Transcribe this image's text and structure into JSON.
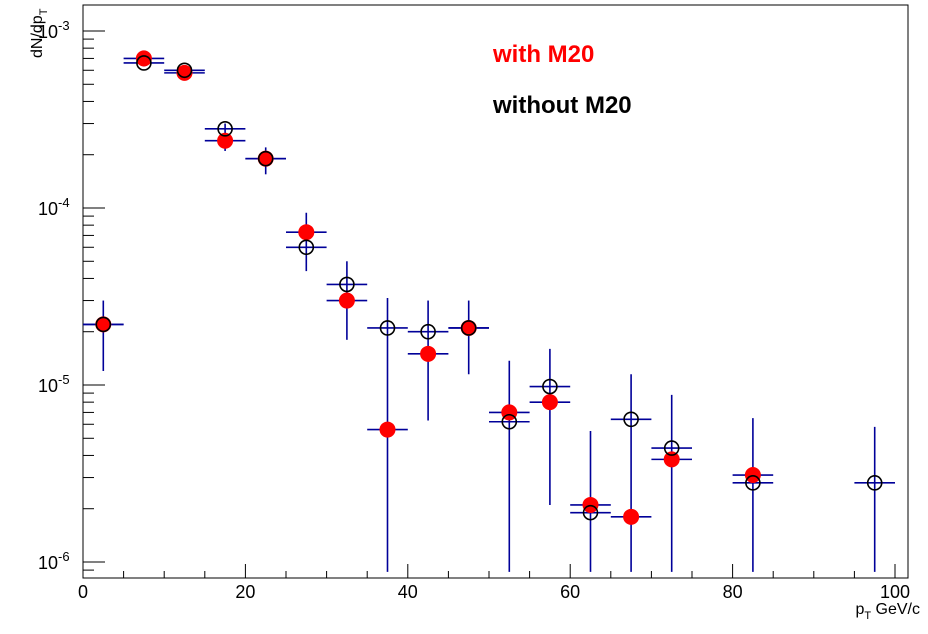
{
  "chart_data": {
    "type": "scatter",
    "title": "",
    "xlabel": "p_T GeV/c",
    "ylabel": "dN/dp_T",
    "xlim": [
      0,
      105
    ],
    "ylim": [
      8.8e-07,
      0.0012
    ],
    "y_scale": "log",
    "grid": false,
    "legend_placement": "top-center",
    "x_ticks": [
      {
        "value": 0,
        "label": "0"
      },
      {
        "value": 20,
        "label": "20"
      },
      {
        "value": 40,
        "label": "40"
      },
      {
        "value": 60,
        "label": "60"
      },
      {
        "value": 80,
        "label": "80"
      },
      {
        "value": 100,
        "label": "100"
      }
    ],
    "y_ticks": [
      {
        "value": 0.001,
        "base": "10",
        "exp": "-3"
      },
      {
        "value": 0.0001,
        "base": "10",
        "exp": "-4"
      },
      {
        "value": 1e-05,
        "base": "10",
        "exp": "-5"
      },
      {
        "value": 1e-06,
        "base": "10",
        "exp": "-6"
      }
    ],
    "series": [
      {
        "name": "with M20",
        "marker": "filled-circle",
        "color": "#ff0000",
        "points": [
          {
            "x": 2.5,
            "y": 2.2e-05,
            "xerr": 2.5
          },
          {
            "x": 7.5,
            "y": 0.0007,
            "xerr": 2.5
          },
          {
            "x": 12.5,
            "y": 0.00058,
            "xerr": 2.5
          },
          {
            "x": 17.5,
            "y": 0.00024,
            "xerr": 2.5
          },
          {
            "x": 22.5,
            "y": 0.00019,
            "xerr": 2.5
          },
          {
            "x": 27.5,
            "y": 7.3e-05,
            "xerr": 2.5
          },
          {
            "x": 32.5,
            "y": 3e-05,
            "xerr": 2.5
          },
          {
            "x": 37.5,
            "y": 5.6e-06,
            "xerr": 2.5
          },
          {
            "x": 42.5,
            "y": 1.5e-05,
            "xerr": 2.5
          },
          {
            "x": 47.5,
            "y": 2.1e-05,
            "xerr": 2.5
          },
          {
            "x": 52.5,
            "y": 7e-06,
            "xerr": 2.5
          },
          {
            "x": 57.5,
            "y": 8e-06,
            "xerr": 2.5
          },
          {
            "x": 62.5,
            "y": 2.1e-06,
            "xerr": 2.5
          },
          {
            "x": 67.5,
            "y": 1.8e-06,
            "xerr": 2.5
          },
          {
            "x": 72.5,
            "y": 3.8e-06,
            "xerr": 2.5
          },
          {
            "x": 82.5,
            "y": 3.1e-06,
            "xerr": 2.5
          }
        ]
      },
      {
        "name": "without M20",
        "marker": "open-circle",
        "color": "#000000",
        "points": [
          {
            "x": 2.5,
            "y": 2.2e-05,
            "xerr": 2.5,
            "ylo": 1.2e-05,
            "yhi": 3e-05
          },
          {
            "x": 7.5,
            "y": 0.00066,
            "xerr": 2.5,
            "ylo": 0.00063,
            "yhi": 0.00074
          },
          {
            "x": 12.5,
            "y": 0.0006,
            "xerr": 2.5,
            "ylo": 0.00055,
            "yhi": 0.00063
          },
          {
            "x": 17.5,
            "y": 0.00028,
            "xerr": 2.5,
            "ylo": 0.00021,
            "yhi": 0.0003
          },
          {
            "x": 22.5,
            "y": 0.00019,
            "xerr": 2.5,
            "ylo": 0.000155,
            "yhi": 0.00022
          },
          {
            "x": 27.5,
            "y": 6e-05,
            "xerr": 2.5,
            "ylo": 4.4e-05,
            "yhi": 9.4e-05
          },
          {
            "x": 32.5,
            "y": 3.7e-05,
            "xerr": 2.5,
            "ylo": 1.8e-05,
            "yhi": 5e-05
          },
          {
            "x": 37.5,
            "y": 2.1e-05,
            "xerr": 2.5,
            "ylo": 8.8e-07,
            "yhi": 3.1e-05
          },
          {
            "x": 42.5,
            "y": 2e-05,
            "xerr": 2.5,
            "ylo": 6.3e-06,
            "yhi": 3e-05
          },
          {
            "x": 47.5,
            "y": 2.1e-05,
            "xerr": 2.5,
            "ylo": 1.15e-05,
            "yhi": 3e-05
          },
          {
            "x": 52.5,
            "y": 6.2e-06,
            "xerr": 2.5,
            "ylo": 8.8e-07,
            "yhi": 1.37e-05
          },
          {
            "x": 57.5,
            "y": 9.8e-06,
            "xerr": 2.5,
            "ylo": 2.1e-06,
            "yhi": 1.6e-05
          },
          {
            "x": 62.5,
            "y": 1.9e-06,
            "xerr": 2.5,
            "ylo": 8.8e-07,
            "yhi": 5.5e-06
          },
          {
            "x": 67.5,
            "y": 6.4e-06,
            "xerr": 2.5,
            "ylo": 8.8e-07,
            "yhi": 1.15e-05
          },
          {
            "x": 72.5,
            "y": 4.4e-06,
            "xerr": 2.5,
            "ylo": 8.8e-07,
            "yhi": 8.8e-06
          },
          {
            "x": 82.5,
            "y": 2.8e-06,
            "xerr": 2.5,
            "ylo": 8.8e-07,
            "yhi": 6.5e-06
          },
          {
            "x": 97.5,
            "y": 2.8e-06,
            "xerr": 2.5,
            "ylo": 8.8e-07,
            "yhi": 5.8e-06
          }
        ]
      }
    ],
    "error_bar_color": "#000099"
  }
}
